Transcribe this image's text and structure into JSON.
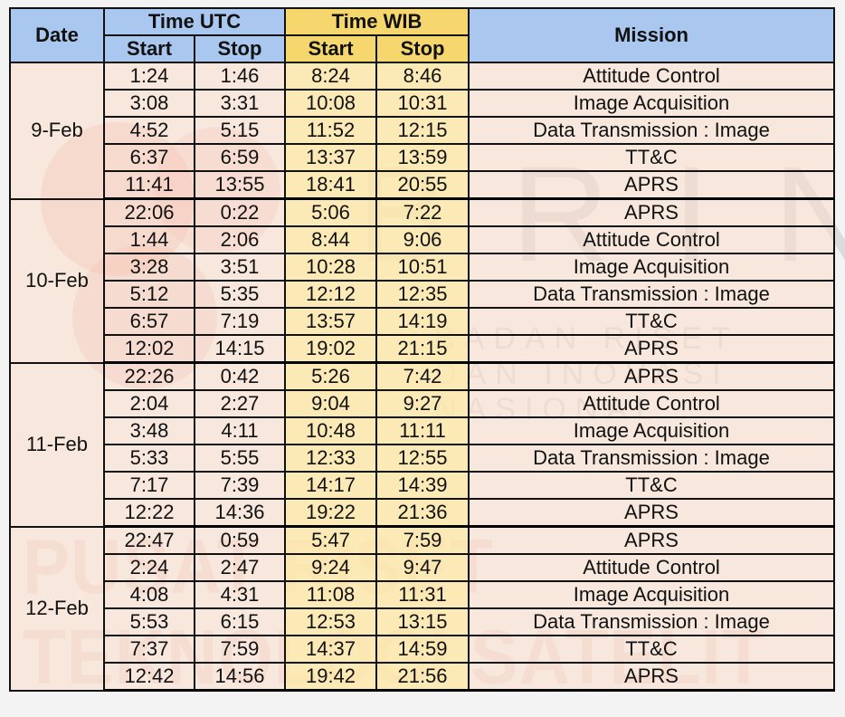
{
  "headers": {
    "date": "Date",
    "time_utc": "Time UTC",
    "time_wib": "Time WIB",
    "start": "Start",
    "stop": "Stop",
    "mission": "Mission"
  },
  "watermark": {
    "brin": "BRIN",
    "sub": "BADAN RISET DAN INOVASI NASIONAL",
    "pusat": "PUSAT RISET TEKNOLOGI SATELIT"
  },
  "schedule": [
    {
      "date": "9-Feb",
      "rows": [
        {
          "utc_start": "1:24",
          "utc_stop": "1:46",
          "wib_start": "8:24",
          "wib_stop": "8:46",
          "mission": "Attitude Control"
        },
        {
          "utc_start": "3:08",
          "utc_stop": "3:31",
          "wib_start": "10:08",
          "wib_stop": "10:31",
          "mission": "Image Acquisition"
        },
        {
          "utc_start": "4:52",
          "utc_stop": "5:15",
          "wib_start": "11:52",
          "wib_stop": "12:15",
          "mission": "Data Transmission : Image"
        },
        {
          "utc_start": "6:37",
          "utc_stop": "6:59",
          "wib_start": "13:37",
          "wib_stop": "13:59",
          "mission": "TT&C"
        },
        {
          "utc_start": "11:41",
          "utc_stop": "13:55",
          "wib_start": "18:41",
          "wib_stop": "20:55",
          "mission": "APRS"
        }
      ]
    },
    {
      "date": "10-Feb",
      "rows": [
        {
          "utc_start": "22:06",
          "utc_stop": "0:22",
          "wib_start": "5:06",
          "wib_stop": "7:22",
          "mission": "APRS"
        },
        {
          "utc_start": "1:44",
          "utc_stop": "2:06",
          "wib_start": "8:44",
          "wib_stop": "9:06",
          "mission": "Attitude Control"
        },
        {
          "utc_start": "3:28",
          "utc_stop": "3:51",
          "wib_start": "10:28",
          "wib_stop": "10:51",
          "mission": "Image Acquisition"
        },
        {
          "utc_start": "5:12",
          "utc_stop": "5:35",
          "wib_start": "12:12",
          "wib_stop": "12:35",
          "mission": "Data Transmission : Image"
        },
        {
          "utc_start": "6:57",
          "utc_stop": "7:19",
          "wib_start": "13:57",
          "wib_stop": "14:19",
          "mission": "TT&C"
        },
        {
          "utc_start": "12:02",
          "utc_stop": "14:15",
          "wib_start": "19:02",
          "wib_stop": "21:15",
          "mission": "APRS"
        }
      ]
    },
    {
      "date": "11-Feb",
      "rows": [
        {
          "utc_start": "22:26",
          "utc_stop": "0:42",
          "wib_start": "5:26",
          "wib_stop": "7:42",
          "mission": "APRS"
        },
        {
          "utc_start": "2:04",
          "utc_stop": "2:27",
          "wib_start": "9:04",
          "wib_stop": "9:27",
          "mission": "Attitude Control"
        },
        {
          "utc_start": "3:48",
          "utc_stop": "4:11",
          "wib_start": "10:48",
          "wib_stop": "11:11",
          "mission": "Image Acquisition"
        },
        {
          "utc_start": "5:33",
          "utc_stop": "5:55",
          "wib_start": "12:33",
          "wib_stop": "12:55",
          "mission": "Data Transmission : Image"
        },
        {
          "utc_start": "7:17",
          "utc_stop": "7:39",
          "wib_start": "14:17",
          "wib_stop": "14:39",
          "mission": "TT&C"
        },
        {
          "utc_start": "12:22",
          "utc_stop": "14:36",
          "wib_start": "19:22",
          "wib_stop": "21:36",
          "mission": "APRS"
        }
      ]
    },
    {
      "date": "12-Feb",
      "rows": [
        {
          "utc_start": "22:47",
          "utc_stop": "0:59",
          "wib_start": "5:47",
          "wib_stop": "7:59",
          "mission": "APRS"
        },
        {
          "utc_start": "2:24",
          "utc_stop": "2:47",
          "wib_start": "9:24",
          "wib_stop": "9:47",
          "mission": "Attitude Control"
        },
        {
          "utc_start": "4:08",
          "utc_stop": "4:31",
          "wib_start": "11:08",
          "wib_stop": "11:31",
          "mission": "Image Acquisition"
        },
        {
          "utc_start": "5:53",
          "utc_stop": "6:15",
          "wib_start": "12:53",
          "wib_stop": "13:15",
          "mission": "Data Transmission : Image"
        },
        {
          "utc_start": "7:37",
          "utc_stop": "7:59",
          "wib_start": "14:37",
          "wib_stop": "14:59",
          "mission": "TT&C"
        },
        {
          "utc_start": "12:42",
          "utc_stop": "14:56",
          "wib_start": "19:42",
          "wib_stop": "21:56",
          "mission": "APRS"
        }
      ]
    }
  ],
  "colors": {
    "header_blue": "#a9c7ef",
    "header_gold": "#f5d76e",
    "cell_peach": "#fadcc8",
    "cell_gold": "#fde8aa"
  }
}
